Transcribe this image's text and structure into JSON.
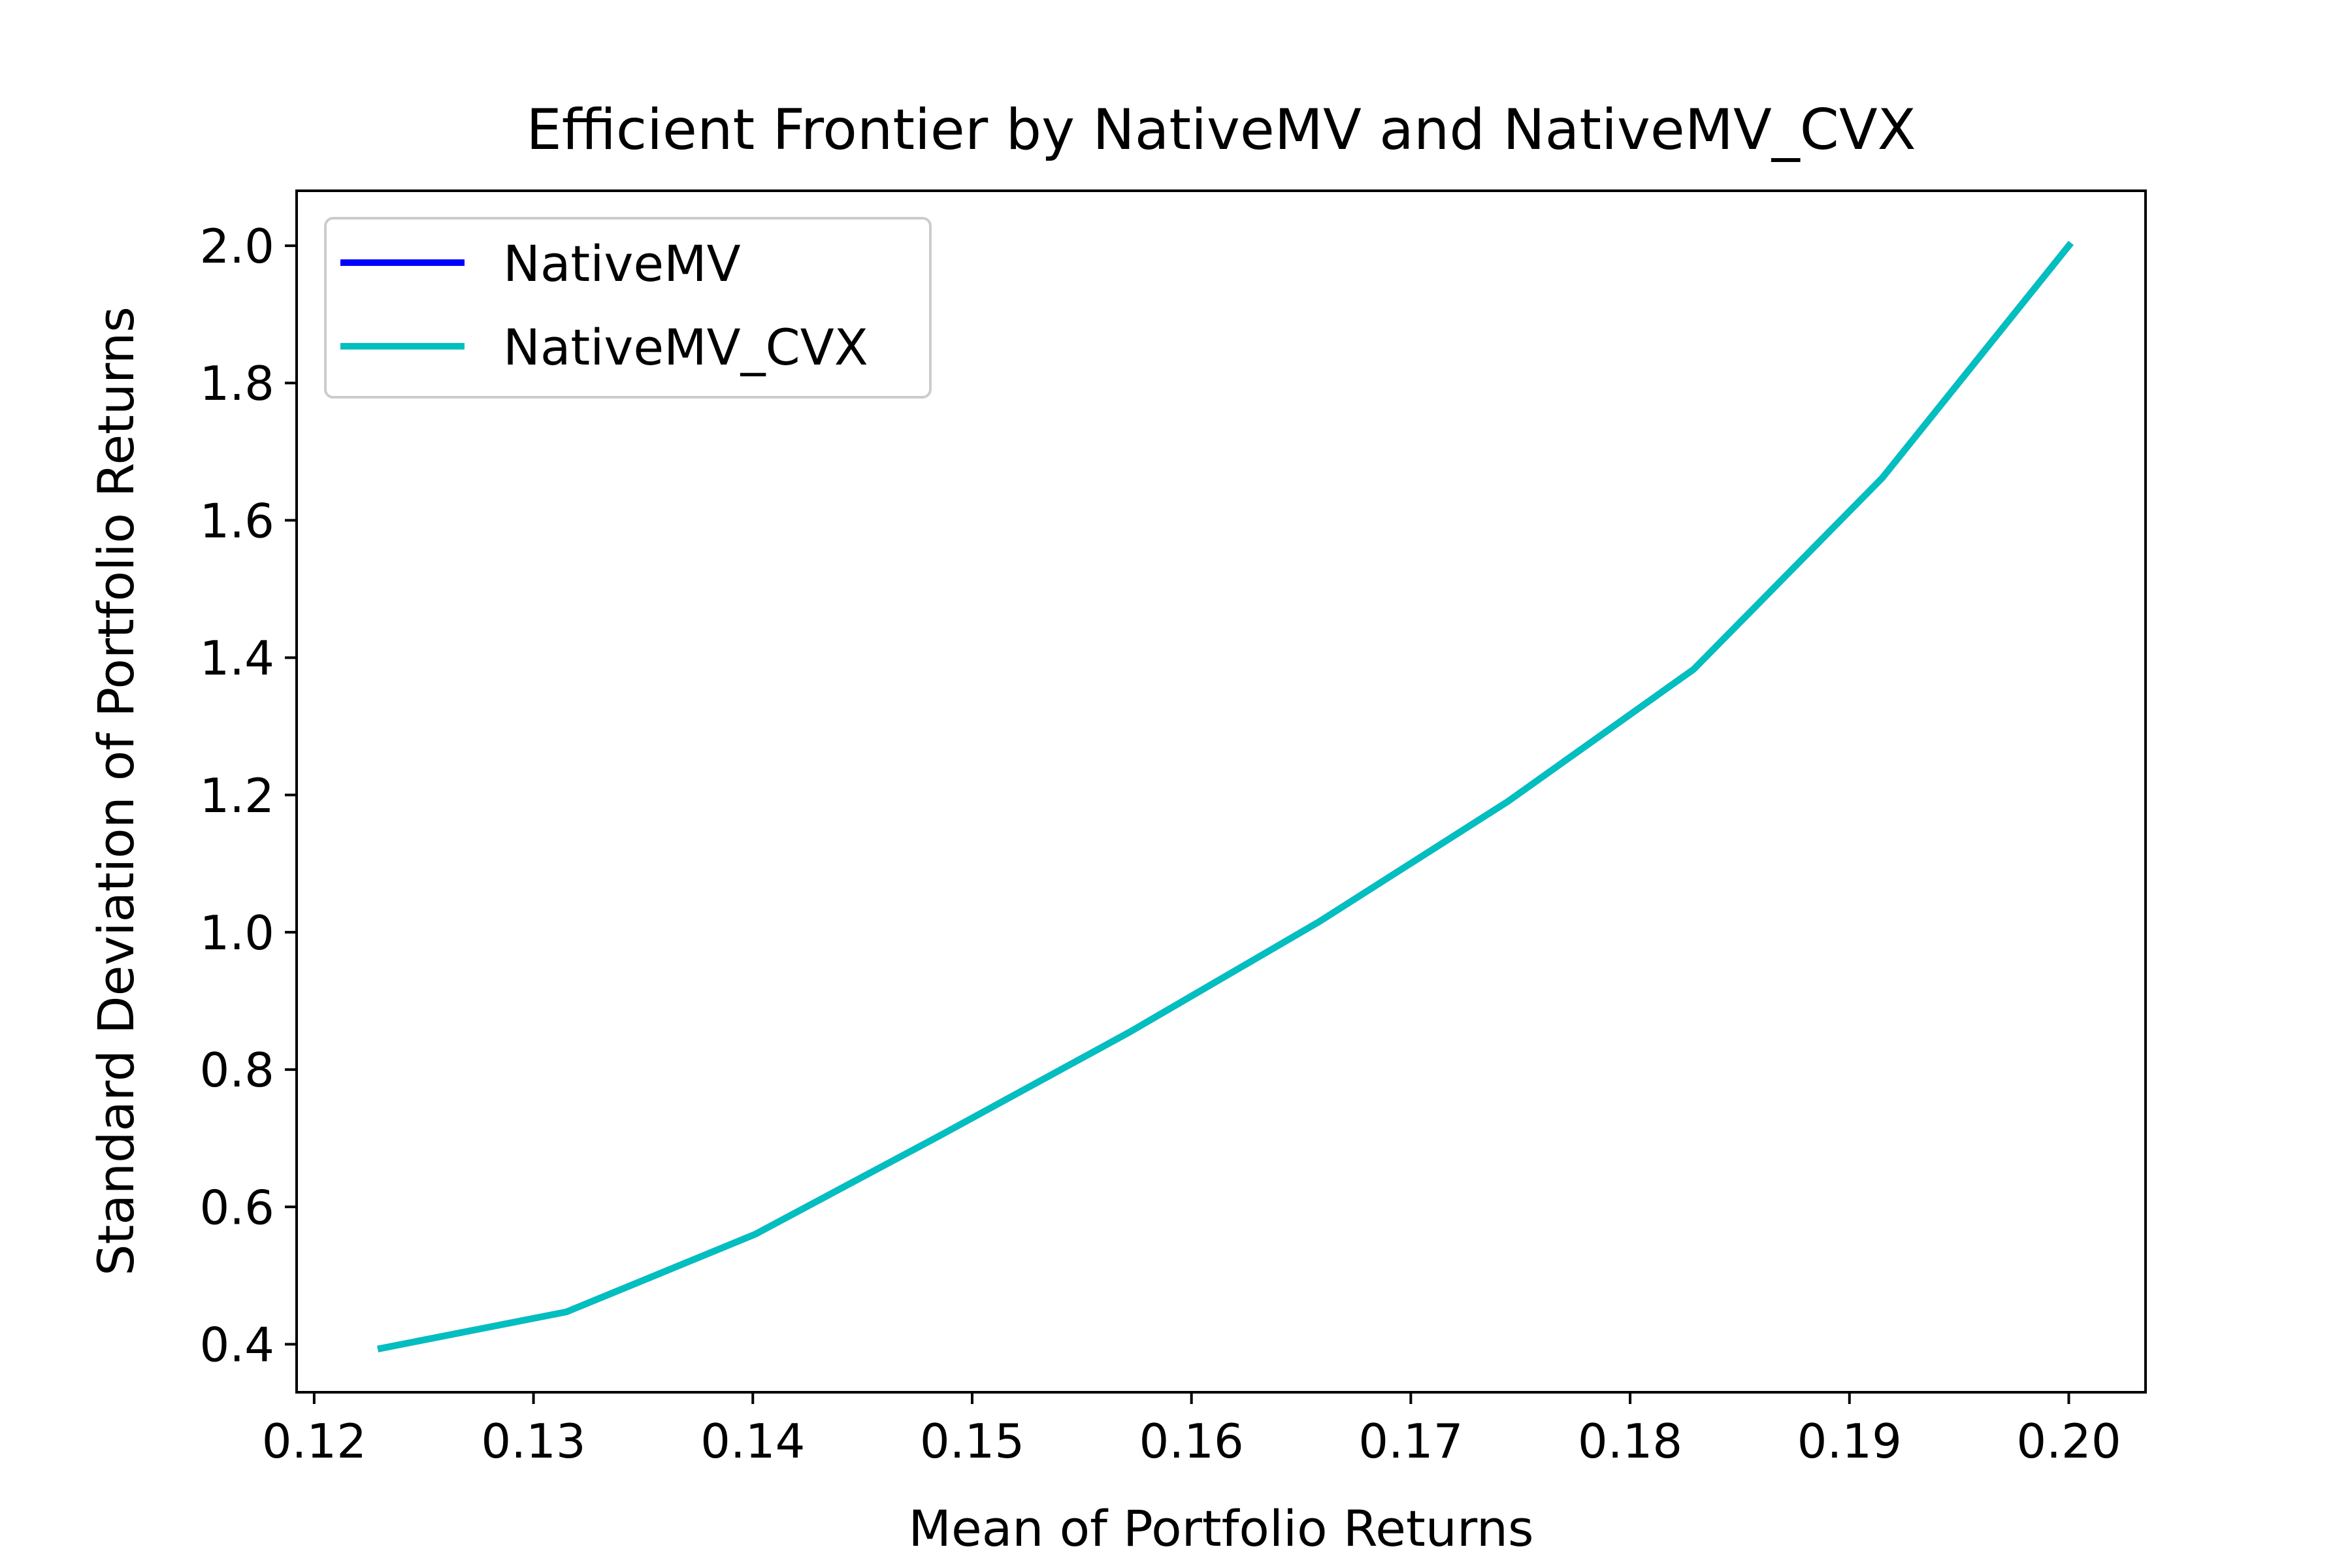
{
  "chart_data": {
    "type": "line",
    "title": "Efficient Frontier by NativeMV and NativeMV_CVX",
    "xlabel": "Mean of Portfolio Returns",
    "ylabel": "Standard Deviation of Portfolio Returns",
    "xlim": [
      0.1192,
      0.2035
    ],
    "ylim": [
      0.33,
      2.08
    ],
    "xticks": [
      0.12,
      0.13,
      0.14,
      0.15,
      0.16,
      0.17,
      0.18,
      0.19,
      0.2
    ],
    "xtick_labels": [
      "0.12",
      "0.13",
      "0.14",
      "0.15",
      "0.16",
      "0.17",
      "0.18",
      "0.19",
      "0.20"
    ],
    "yticks": [
      0.4,
      0.6,
      0.8,
      1.0,
      1.2,
      1.4,
      1.6,
      1.8,
      2.0
    ],
    "ytick_labels": [
      "0.4",
      "0.6",
      "0.8",
      "1.0",
      "1.2",
      "1.4",
      "1.6",
      "1.8",
      "2.0"
    ],
    "grid": false,
    "legend_position": "upper-left",
    "x": [
      0.1229,
      0.1315,
      0.1401,
      0.1486,
      0.1572,
      0.1658,
      0.1744,
      0.1829,
      0.1915,
      0.2001
    ],
    "series": [
      {
        "name": "NativeMV",
        "color": "#0000ff",
        "values": [
          0.393,
          0.447,
          0.56,
          0.705,
          0.855,
          1.015,
          1.19,
          1.383,
          1.662,
          2.004
        ]
      },
      {
        "name": "NativeMV_CVX",
        "color": "#00bfbf",
        "values": [
          0.393,
          0.447,
          0.56,
          0.705,
          0.855,
          1.015,
          1.19,
          1.383,
          1.662,
          2.004
        ]
      }
    ]
  }
}
